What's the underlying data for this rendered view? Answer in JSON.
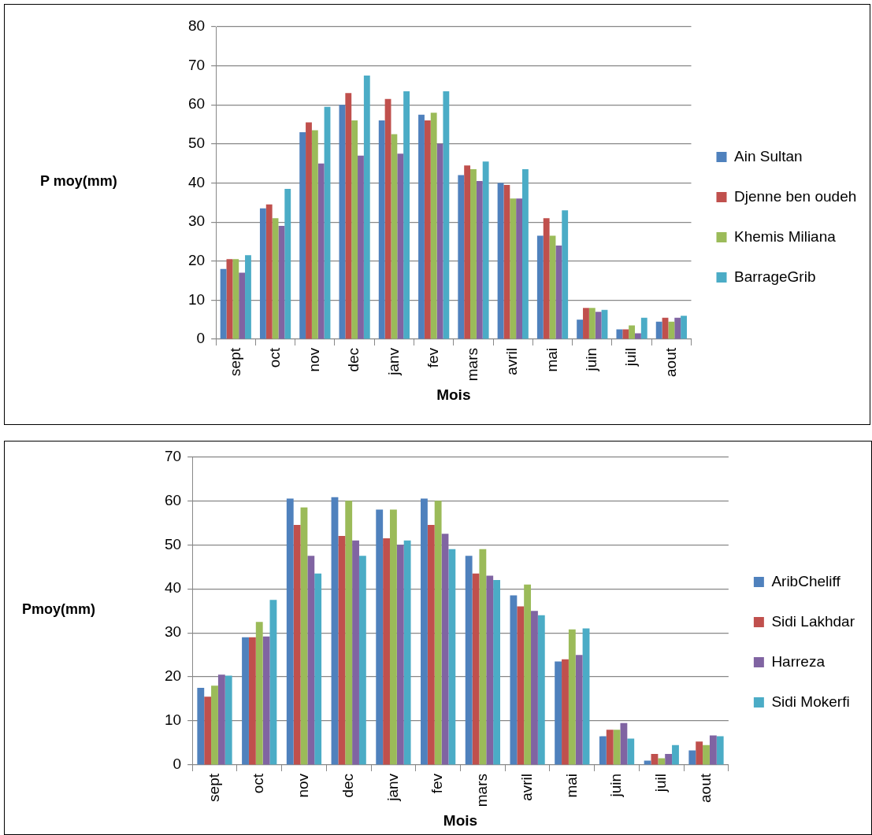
{
  "chart_data": [
    {
      "type": "bar",
      "xlabel": "Mois",
      "ylabel": "P moy(mm)",
      "categories": [
        "sept",
        "oct",
        "nov",
        "dec",
        "janv",
        "fev",
        "mars",
        "avril",
        "mai",
        "juin",
        "juil",
        "aout"
      ],
      "series": [
        {
          "name": "Ain Sultan",
          "color": "#4f81bd",
          "values": [
            18,
            33.5,
            53,
            60,
            56,
            57.5,
            42,
            40,
            26.5,
            5,
            2.5,
            4.5
          ]
        },
        {
          "name": "Djenne ben oudeh",
          "color": "#c0504d",
          "values": [
            20.5,
            34.5,
            55.5,
            63,
            61.5,
            56,
            44.5,
            39.5,
            31,
            8,
            2.5,
            5.5
          ]
        },
        {
          "name": "Khemis Miliana",
          "color": "#9bbb59",
          "values": [
            20.5,
            31,
            53.5,
            56,
            52.5,
            58,
            43.5,
            36,
            26.5,
            8,
            3.5,
            4.5
          ]
        },
        {
          "color": "#8064a2",
          "values": [
            17,
            29,
            45,
            47,
            47.5,
            50,
            40.5,
            36,
            24,
            7,
            1.5,
            5.5
          ]
        },
        {
          "name": "BarrageGrib",
          "color": "#4bacc6",
          "values": [
            21.5,
            38.5,
            59.5,
            67.5,
            63.5,
            63.5,
            45.5,
            43.5,
            33,
            7.5,
            5.5,
            6
          ]
        }
      ],
      "ylim": [
        0,
        80
      ],
      "yticks": [
        0,
        10,
        20,
        30,
        40,
        50,
        60,
        70,
        80
      ],
      "grid": "y",
      "legend": "right"
    },
    {
      "type": "bar",
      "xlabel": "Mois",
      "ylabel": "Pmoy(mm)",
      "categories": [
        "sept",
        "oct",
        "nov",
        "dec",
        "janv",
        "fev",
        "mars",
        "avril",
        "mai",
        "juin",
        "juil",
        "aout"
      ],
      "series": [
        {
          "name": "AribCheliff",
          "color": "#4f81bd",
          "values": [
            17.5,
            29,
            60.5,
            60.8,
            58,
            60.5,
            47.5,
            38.5,
            23.5,
            6.5,
            1,
            3.3
          ]
        },
        {
          "name": "Sidi Lakhdar",
          "color": "#c0504d",
          "values": [
            15.5,
            29,
            54.5,
            52,
            51.5,
            54.5,
            43.5,
            36,
            24,
            8,
            2.5,
            5.3
          ]
        },
        {
          "color": "#9bbb59",
          "values": [
            18,
            32.5,
            58.5,
            60,
            58,
            60,
            49,
            41,
            30.8,
            8,
            1.5,
            4.5
          ]
        },
        {
          "name": "Harreza",
          "color": "#8064a2",
          "values": [
            20.5,
            29.2,
            47.5,
            51,
            50,
            52.5,
            43,
            35,
            25,
            9.5,
            2.5,
            6.7
          ]
        },
        {
          "name": "Sidi Mokerfi",
          "color": "#4bacc6",
          "values": [
            20.3,
            37.5,
            43.5,
            47.5,
            51,
            49,
            42,
            34,
            31,
            6,
            4.5,
            6.5
          ]
        }
      ],
      "ylim": [
        0,
        70
      ],
      "yticks": [
        0,
        10,
        20,
        30,
        40,
        50,
        60,
        70
      ],
      "grid": "y",
      "legend": "right"
    }
  ]
}
